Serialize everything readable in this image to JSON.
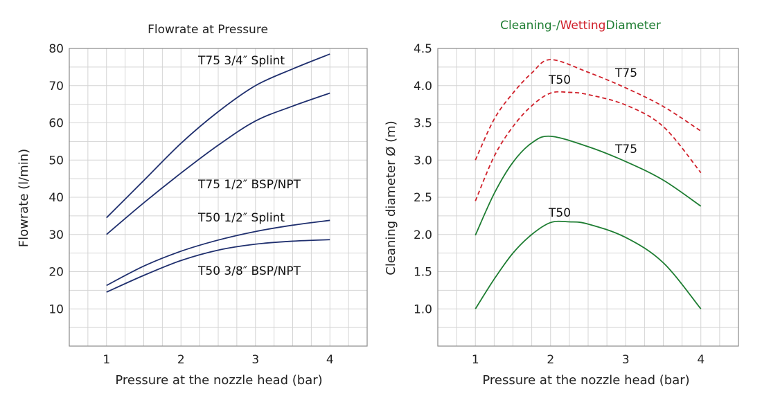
{
  "colors": {
    "flow_line": "#1f2f6e",
    "wetting": "#d0202a",
    "cleaning": "#1e7d32",
    "grid": "#d4d4d4",
    "frame": "#8a8a8a",
    "text": "#222222"
  },
  "chart_data": [
    {
      "type": "line",
      "title": "Flowrate at Pressure",
      "xlabel": "Pressure at the nozzle head (bar)",
      "ylabel": "Flowrate (l/min)",
      "xlim": [
        0.5,
        4.5
      ],
      "ylim": [
        0,
        80
      ],
      "xticks": [
        1,
        2,
        3,
        4
      ],
      "yticks": [
        10,
        20,
        30,
        40,
        50,
        60,
        70,
        80
      ],
      "grid": true,
      "series": [
        {
          "name": "T75 3/4″ Splint",
          "x": [
            1,
            1.5,
            2,
            2.5,
            3,
            3.5,
            4
          ],
          "y": [
            34.5,
            44.5,
            54.5,
            63,
            70,
            74.5,
            78.5
          ]
        },
        {
          "name": "T75 1/2″ BSP/NPT",
          "x": [
            1,
            1.5,
            2,
            2.5,
            3,
            3.5,
            4
          ],
          "y": [
            30,
            38.5,
            46.5,
            54,
            60.5,
            64.5,
            68
          ]
        },
        {
          "name": "T50 1/2″ Splint",
          "x": [
            1,
            1.5,
            2,
            2.5,
            3,
            3.5,
            4
          ],
          "y": [
            16.3,
            21.5,
            25.5,
            28.5,
            30.8,
            32.5,
            33.8
          ]
        },
        {
          "name": "T50 3/8″ BSP/NPT",
          "x": [
            1,
            1.5,
            2,
            2.5,
            3,
            3.5,
            4
          ],
          "y": [
            14.5,
            19,
            23,
            25.8,
            27.4,
            28.2,
            28.6
          ]
        }
      ]
    },
    {
      "type": "line",
      "title_parts": [
        "Cleaning-/",
        "Wetting",
        "Diameter"
      ],
      "xlabel": "Pressure at the nozzle head (bar)",
      "ylabel": "Cleaning diameter Ø (m)",
      "xlim": [
        0.5,
        4.5
      ],
      "ylim": [
        0.5,
        4.5
      ],
      "xticks": [
        1,
        2,
        3,
        4
      ],
      "yticks": [
        1.0,
        1.5,
        2.0,
        2.5,
        3.0,
        3.5,
        4.0,
        4.5
      ],
      "grid": true,
      "series": [
        {
          "name": "T75",
          "kind": "wetting",
          "x": [
            1,
            1.25,
            1.5,
            1.75,
            2,
            2.5,
            3,
            3.5,
            4
          ],
          "y": [
            3.0,
            3.55,
            3.9,
            4.17,
            4.35,
            4.18,
            3.97,
            3.72,
            3.39
          ]
        },
        {
          "name": "T50",
          "kind": "wetting",
          "x": [
            1,
            1.25,
            1.5,
            1.75,
            2,
            2.25,
            2.5,
            3,
            3.5,
            4
          ],
          "y": [
            2.45,
            3.05,
            3.45,
            3.73,
            3.9,
            3.91,
            3.88,
            3.74,
            3.45,
            2.83
          ]
        },
        {
          "name": "T75",
          "kind": "cleaning",
          "x": [
            1,
            1.25,
            1.5,
            1.75,
            2,
            2.5,
            3,
            3.5,
            4
          ],
          "y": [
            1.99,
            2.55,
            2.97,
            3.23,
            3.32,
            3.18,
            2.98,
            2.73,
            2.38
          ]
        },
        {
          "name": "T50",
          "kind": "cleaning",
          "x": [
            1,
            1.25,
            1.5,
            1.75,
            2,
            2.25,
            2.5,
            3,
            3.5,
            4
          ],
          "y": [
            1.0,
            1.4,
            1.75,
            2.0,
            2.16,
            2.17,
            2.14,
            1.96,
            1.62,
            1.0
          ]
        }
      ]
    }
  ]
}
